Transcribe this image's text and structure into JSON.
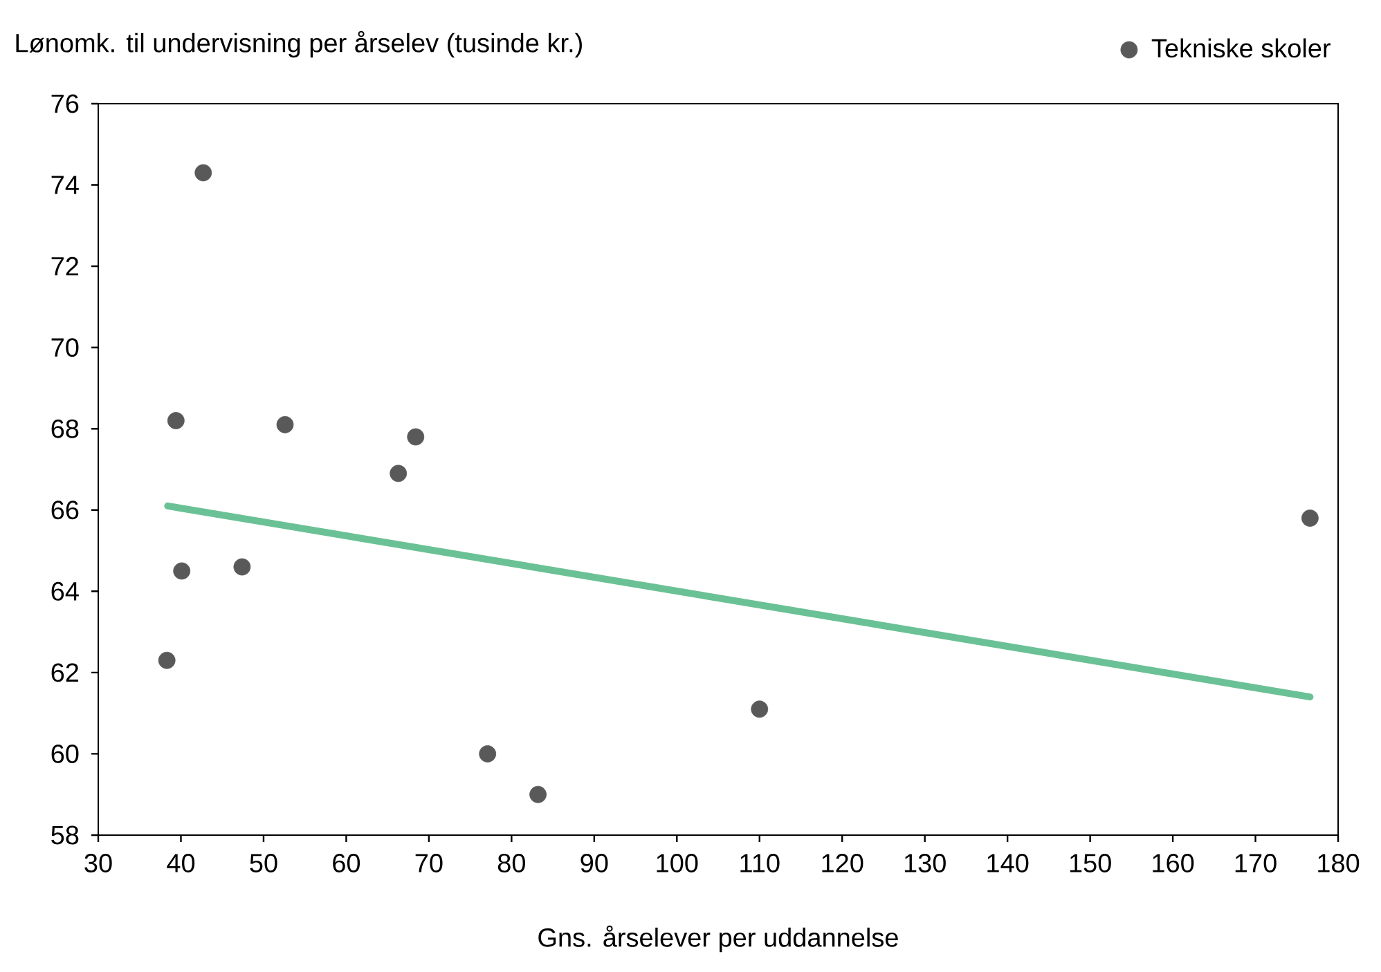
{
  "chart_data": {
    "type": "scatter",
    "xlabel": "Gns. årselever per uddannelse",
    "ylabel": "Lønomk. til undervisning per årselev (tusinde kr.)",
    "xlim": [
      30,
      180
    ],
    "xticks": [
      30,
      40,
      50,
      60,
      70,
      80,
      90,
      100,
      110,
      120,
      130,
      140,
      150,
      160,
      170,
      180
    ],
    "ylim": [
      58,
      76
    ],
    "yticks": [
      58,
      60,
      62,
      64,
      66,
      68,
      70,
      72,
      74,
      76
    ],
    "legend": "top right",
    "series": [
      {
        "name": "Tekniske skoler",
        "color": "#595959",
        "marker": "circle",
        "x": [
          42.7,
          39.4,
          52.6,
          68.4,
          66.3,
          40.1,
          47.4,
          38.3,
          77.1,
          83.2,
          110,
          176.6
        ],
        "values": [
          74.3,
          68.2,
          68.1,
          67.8,
          66.9,
          64.5,
          64.6,
          62.3,
          60.0,
          59.0,
          61.1,
          65.8
        ]
      },
      {
        "type": "line",
        "color": "#6bc196",
        "marker": "none",
        "x": [
          38.4,
          176.6
        ],
        "values": [
          66.1,
          61.4
        ]
      }
    ]
  }
}
